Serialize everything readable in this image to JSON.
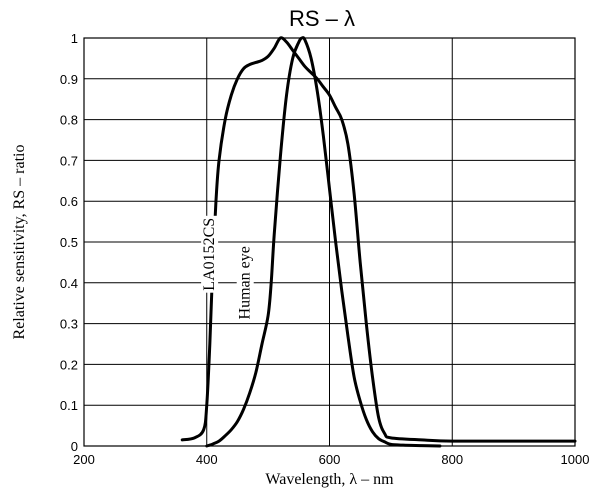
{
  "chart_data": {
    "type": "line",
    "title": "RS – λ",
    "xlabel": "Wavelength, λ – nm",
    "ylabel": "Relative sensitivity, RS – ratio",
    "xlim": [
      200,
      1000
    ],
    "ylim": [
      0,
      1
    ],
    "x_ticks": [
      "200",
      "400",
      "600",
      "800",
      "1000"
    ],
    "y_ticks": [
      "0",
      "0.1",
      "0.2",
      "0.3",
      "0.4",
      "0.5",
      "0.6",
      "0.7",
      "0.8",
      "0.9",
      "1"
    ],
    "grid": true,
    "series": [
      {
        "name": "LA0152CS",
        "points": [
          [
            360,
            0.015
          ],
          [
            380,
            0.02
          ],
          [
            395,
            0.04
          ],
          [
            400,
            0.1
          ],
          [
            405,
            0.25
          ],
          [
            410,
            0.45
          ],
          [
            415,
            0.6
          ],
          [
            420,
            0.7
          ],
          [
            430,
            0.8
          ],
          [
            440,
            0.86
          ],
          [
            450,
            0.9
          ],
          [
            460,
            0.925
          ],
          [
            470,
            0.935
          ],
          [
            480,
            0.94
          ],
          [
            490,
            0.945
          ],
          [
            500,
            0.955
          ],
          [
            510,
            0.975
          ],
          [
            520,
            1.0
          ],
          [
            530,
            0.99
          ],
          [
            540,
            0.97
          ],
          [
            550,
            0.95
          ],
          [
            560,
            0.93
          ],
          [
            570,
            0.915
          ],
          [
            580,
            0.9
          ],
          [
            590,
            0.88
          ],
          [
            600,
            0.86
          ],
          [
            610,
            0.83
          ],
          [
            620,
            0.8
          ],
          [
            630,
            0.74
          ],
          [
            640,
            0.62
          ],
          [
            650,
            0.45
          ],
          [
            660,
            0.3
          ],
          [
            670,
            0.17
          ],
          [
            680,
            0.07
          ],
          [
            690,
            0.03
          ],
          [
            700,
            0.02
          ],
          [
            750,
            0.015
          ],
          [
            800,
            0.012
          ],
          [
            900,
            0.012
          ],
          [
            1000,
            0.012
          ]
        ]
      },
      {
        "name": "Human eye",
        "points": [
          [
            400,
            0.0
          ],
          [
            410,
            0.005
          ],
          [
            420,
            0.012
          ],
          [
            430,
            0.025
          ],
          [
            440,
            0.04
          ],
          [
            450,
            0.06
          ],
          [
            460,
            0.09
          ],
          [
            470,
            0.13
          ],
          [
            480,
            0.18
          ],
          [
            490,
            0.25
          ],
          [
            500,
            0.32
          ],
          [
            505,
            0.4
          ],
          [
            510,
            0.52
          ],
          [
            520,
            0.71
          ],
          [
            530,
            0.86
          ],
          [
            540,
            0.95
          ],
          [
            550,
            0.99
          ],
          [
            555,
            1.0
          ],
          [
            560,
            0.995
          ],
          [
            570,
            0.95
          ],
          [
            580,
            0.87
          ],
          [
            590,
            0.76
          ],
          [
            600,
            0.63
          ],
          [
            610,
            0.5
          ],
          [
            620,
            0.38
          ],
          [
            630,
            0.27
          ],
          [
            640,
            0.17
          ],
          [
            650,
            0.11
          ],
          [
            660,
            0.065
          ],
          [
            670,
            0.035
          ],
          [
            680,
            0.018
          ],
          [
            690,
            0.01
          ],
          [
            700,
            0.004
          ],
          [
            720,
            0.002
          ],
          [
            750,
            0.001
          ],
          [
            780,
            0.0
          ]
        ]
      }
    ]
  }
}
